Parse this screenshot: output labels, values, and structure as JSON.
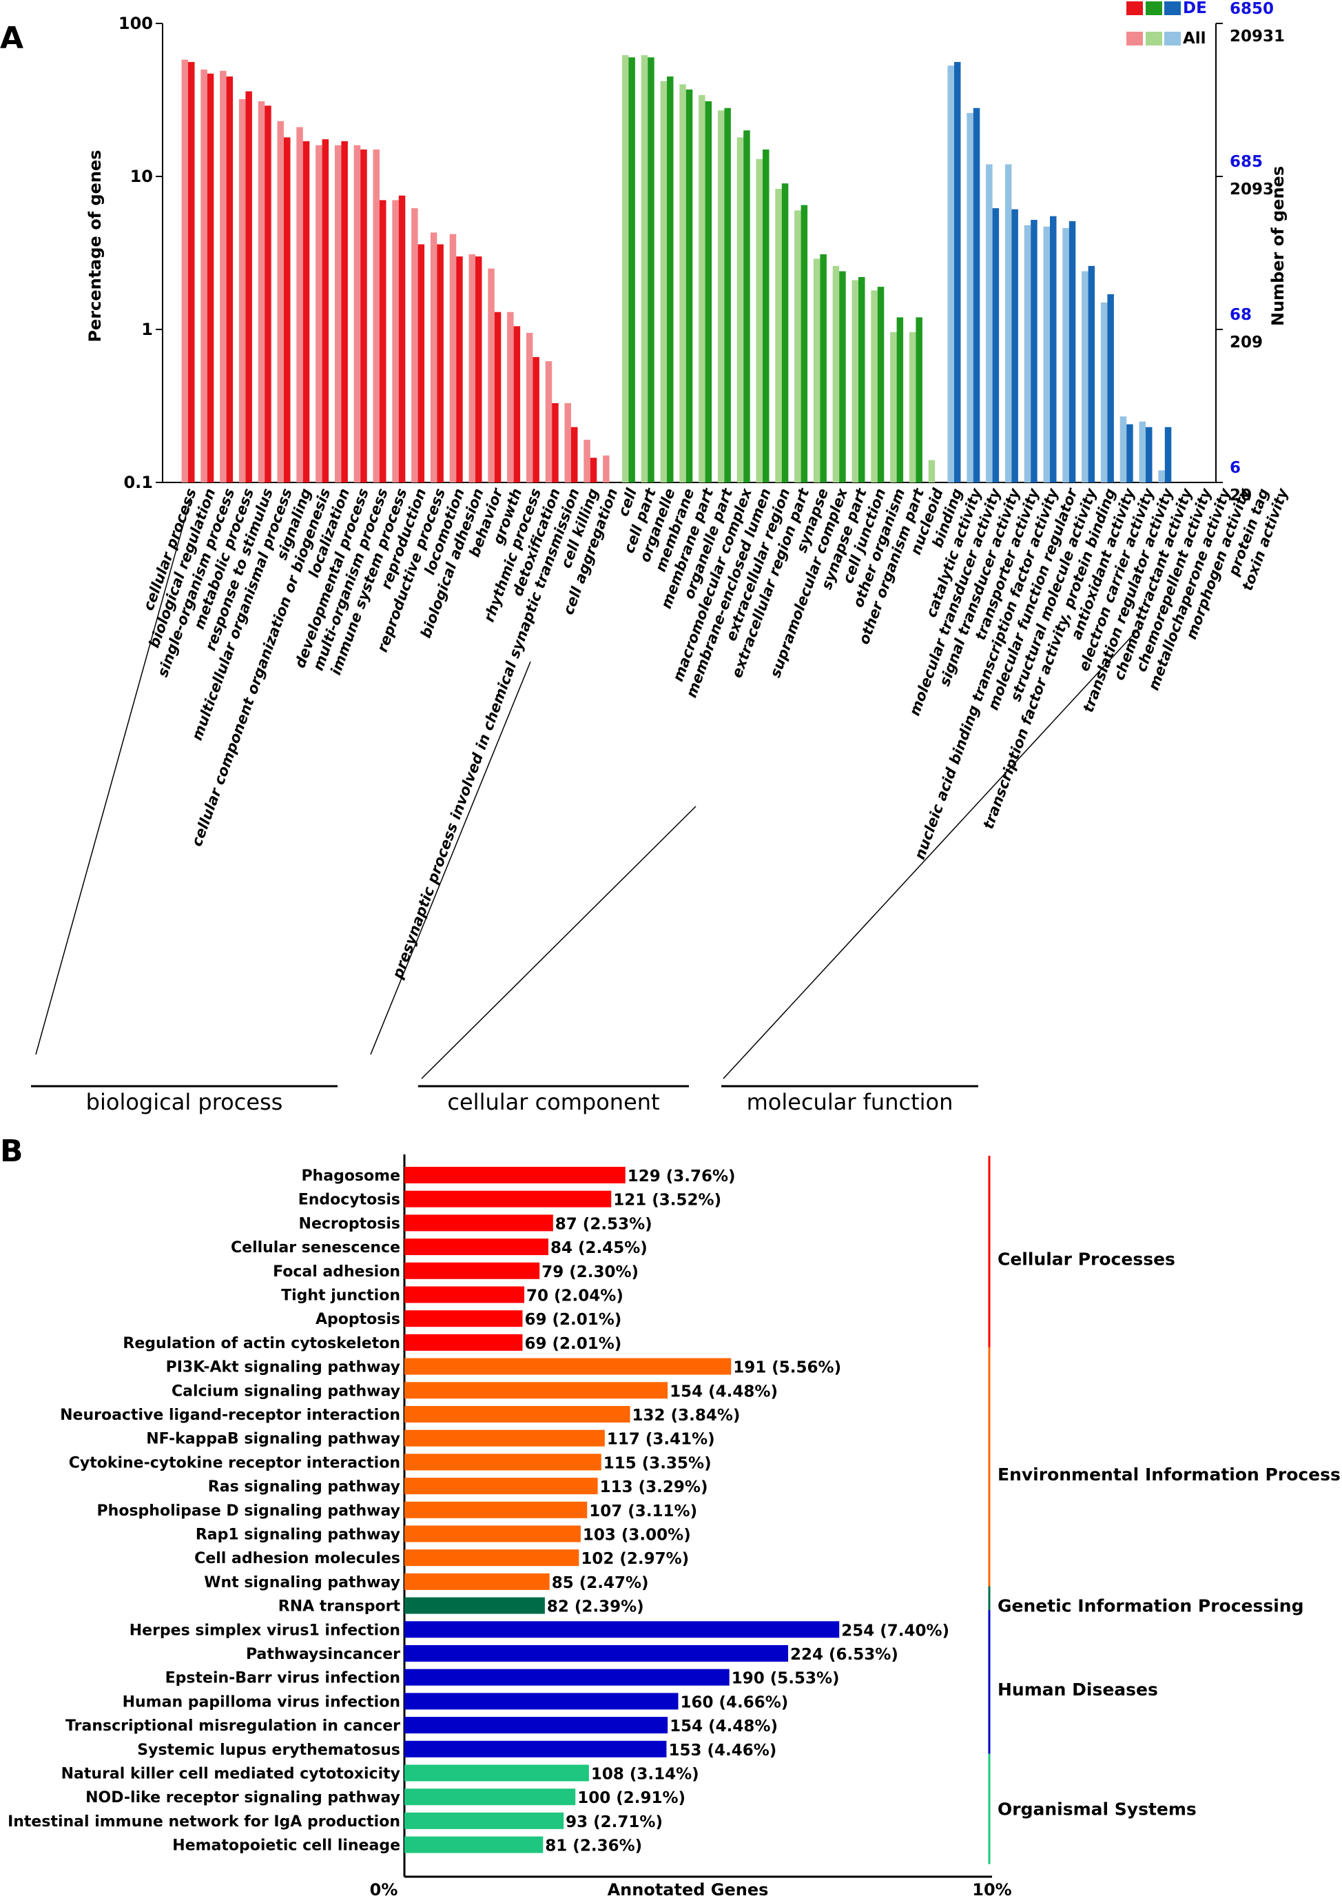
{
  "panel_labels": {
    "a": "A",
    "b": "B"
  },
  "colors": {
    "bp_de": "#e8141c",
    "bp_all": "#f28b8f",
    "cc_de": "#1f9a1f",
    "cc_all": "#a8d88e",
    "mf_de": "#1766b5",
    "mf_all": "#93c2e3",
    "kegg_cellular": "#ff0000",
    "kegg_env": "#ff6600",
    "kegg_gen": "#006c47",
    "kegg_human": "#0000c8",
    "kegg_org": "#1ec67f",
    "right_axis_blue": "#1010e0"
  },
  "chart_data": [
    {
      "type": "bar",
      "panel": "A",
      "title": "",
      "ylabel": "Percentage of genes",
      "ylabel_right": "Number of genes",
      "yscale": "log",
      "ylim": [
        0.1,
        100
      ],
      "yticks": [
        "100",
        "10",
        "1",
        "0.1"
      ],
      "right_ticks_de": [
        "6850",
        "685",
        "68",
        "6"
      ],
      "right_ticks_all": [
        "20931",
        "2093",
        "209",
        "20"
      ],
      "legend": {
        "de": "DE",
        "all": "All",
        "position": "top-right"
      },
      "groups": [
        {
          "name": "biological process",
          "key": "bp",
          "categories": [
            "cellular process",
            "biological regulation",
            "single-organism process",
            "metabolic process",
            "response to stimulus",
            "multicellular organismal process",
            "signaling",
            "cellular component organization or biogenesis",
            "localization",
            "developmental process",
            "multi-organism process",
            "immune system process",
            "reproduction",
            "reproductive process",
            "locomotion",
            "biological adhesion",
            "behavior",
            "growth",
            "rhythmic process",
            "detoxification",
            "presynaptic process involved in chemical synaptic transmission",
            "cell killing",
            "cell aggregation"
          ],
          "series": [
            {
              "name": "All",
              "values": [
                58,
                50,
                49,
                32,
                31,
                23,
                21,
                16,
                16,
                16,
                15,
                7,
                6.2,
                4.3,
                4.2,
                3.1,
                2.5,
                1.3,
                0.95,
                0.62,
                0.33,
                0.19,
                0.15
              ]
            },
            {
              "name": "DE",
              "values": [
                56,
                47,
                45,
                36,
                29,
                18,
                17,
                17.5,
                17,
                15,
                7,
                7.5,
                3.6,
                3.6,
                3,
                3,
                1.3,
                1.05,
                0.66,
                0.33,
                0.23,
                0.145,
                0
              ]
            }
          ]
        },
        {
          "name": "cellular component",
          "key": "cc",
          "categories": [
            "cell",
            "cell part",
            "organelle",
            "membrane",
            "membrane part",
            "organelle part",
            "macromolecular complex",
            "membrane-enclosed lumen",
            "extracellular region",
            "extracellular region part",
            "synapse",
            "supramolecular complex",
            "synapse part",
            "cell junction",
            "other organism",
            "other organism part",
            "nucleoid"
          ],
          "series": [
            {
              "name": "All",
              "values": [
                62,
                62,
                42,
                40,
                34,
                27,
                18,
                13,
                8.3,
                6,
                2.9,
                2.6,
                2.1,
                1.8,
                0.96,
                0.96,
                0.14
              ]
            },
            {
              "name": "DE",
              "values": [
                60,
                60,
                45,
                37,
                31,
                28,
                20,
                15,
                9,
                6.5,
                3.1,
                2.4,
                2.2,
                1.9,
                1.2,
                1.2,
                0
              ]
            }
          ]
        },
        {
          "name": "molecular function",
          "key": "mf",
          "categories": [
            "binding",
            "catalytic activity",
            "molecular transducer activity",
            "signal transducer activity",
            "transporter activity",
            "nucleic acid binding transcription factor activity",
            "molecular function regulator",
            "structural molecule activity",
            "transcription factor activity, protein binding",
            "antioxidant activity",
            "electron carrier activity",
            "translation regulator activity",
            "chemoattractant activity",
            "chemorepellent activity",
            "metallochaperone activity",
            "morphogen activity",
            "protein tag",
            "toxin activity"
          ],
          "series": [
            {
              "name": "All",
              "values": [
                53,
                26,
                12,
                12,
                4.8,
                4.7,
                4.6,
                2.4,
                1.5,
                0.27,
                0.25,
                0.12,
                0,
                0,
                0,
                0,
                0,
                0
              ]
            },
            {
              "name": "DE",
              "values": [
                56,
                28,
                6.2,
                6.1,
                5.2,
                5.5,
                5.1,
                2.6,
                1.7,
                0.24,
                0.23,
                0.23,
                0,
                0,
                0,
                0,
                0,
                0
              ]
            }
          ]
        }
      ]
    },
    {
      "type": "bar",
      "panel": "B",
      "orientation": "horizontal",
      "xlabel": "Annotated Genes",
      "xticks": [
        "0%",
        "10%"
      ],
      "xlim": [
        0,
        10
      ],
      "categories": [
        "Phagosome",
        "Endocytosis",
        "Necroptosis",
        "Cellular senescence",
        "Focal adhesion",
        "Tight junction",
        "Apoptosis",
        "Regulation of actin cytoskeleton",
        "PI3K-Akt signaling pathway",
        "Calcium signaling pathway",
        "Neuroactive ligand-receptor interaction",
        "NF-kappaB signaling pathway",
        "Cytokine-cytokine receptor interaction",
        "Ras signaling pathway",
        "Phospholipase D signaling pathway",
        "Rap1 signaling pathway",
        "Cell adhesion molecules",
        "Wnt signaling pathway",
        "RNA transport",
        "Herpes simplex virus1 infection",
        "Pathwaysincancer",
        "Epstein-Barr virus infection",
        "Human papilloma virus infection",
        "Transcriptional misregulation in cancer",
        "Systemic lupus erythematosus",
        "Natural killer cell mediated cytotoxicity",
        "NOD-like receptor signaling pathway",
        "Intestinal immune network for IgA production",
        "Hematopoietic cell lineage"
      ],
      "counts": [
        129,
        121,
        87,
        84,
        79,
        70,
        69,
        69,
        191,
        154,
        132,
        117,
        115,
        113,
        107,
        103,
        102,
        85,
        82,
        254,
        224,
        190,
        160,
        154,
        153,
        108,
        100,
        93,
        81
      ],
      "percents": [
        3.76,
        3.52,
        2.53,
        2.45,
        2.3,
        2.04,
        2.01,
        2.01,
        5.56,
        4.48,
        3.84,
        3.41,
        3.35,
        3.29,
        3.11,
        3.0,
        2.97,
        2.47,
        2.39,
        7.4,
        6.53,
        5.53,
        4.66,
        4.48,
        4.46,
        3.14,
        2.91,
        2.71,
        2.36
      ],
      "value_labels": [
        "129 (3.76%)",
        "121 (3.52%)",
        "87 (2.53%)",
        "84 (2.45%)",
        "79 (2.30%)",
        "70 (2.04%)",
        "69 (2.01%)",
        "69 (2.01%)",
        "191 (5.56%)",
        "154 (4.48%)",
        "132 (3.84%)",
        "117 (3.41%)",
        "115 (3.35%)",
        "113 (3.29%)",
        "107 (3.11%)",
        "103 (3.00%)",
        "102 (2.97%)",
        "85 (2.47%)",
        "82 (2.39%)",
        "254 (7.40%)",
        "224 (6.53%)",
        "190 (5.53%)",
        "160 (4.66%)",
        "154 (4.48%)",
        "153 (4.46%)",
        "108 (3.14%)",
        "100 (2.91%)",
        "93 (2.71%)",
        "81 (2.36%)"
      ],
      "category_group": [
        0,
        0,
        0,
        0,
        0,
        0,
        0,
        0,
        1,
        1,
        1,
        1,
        1,
        1,
        1,
        1,
        1,
        1,
        2,
        3,
        3,
        3,
        3,
        3,
        3,
        4,
        4,
        4,
        4
      ],
      "groups": [
        {
          "name": "Cellular Processes",
          "color_key": "kegg_cellular"
        },
        {
          "name": "Environmental Information Processing",
          "color_key": "kegg_env"
        },
        {
          "name": "Genetic Information Processing",
          "color_key": "kegg_gen"
        },
        {
          "name": "Human Diseases",
          "color_key": "kegg_human"
        },
        {
          "name": "Organismal Systems",
          "color_key": "kegg_org"
        }
      ]
    }
  ]
}
